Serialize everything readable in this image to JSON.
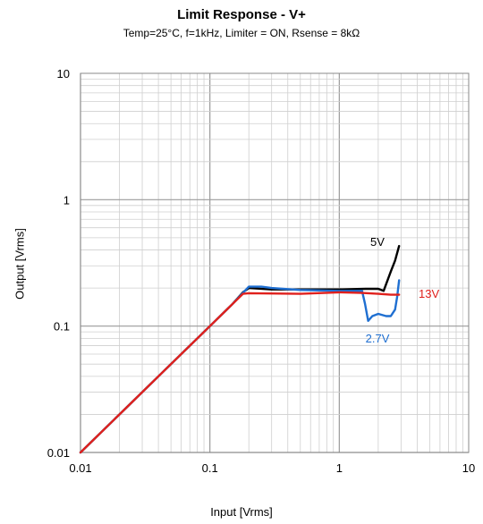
{
  "chart_data": {
    "type": "line",
    "title": "Limit Response - V+",
    "subtitle": "Temp=25°C, f=1kHz, Limiter = ON, Rsense = 8kΩ",
    "xlabel": "Input [Vrms]",
    "ylabel": "Output [Vrms]",
    "x_scale": "log",
    "y_scale": "log",
    "xlim": [
      0.01,
      10
    ],
    "ylim": [
      0.01,
      10
    ],
    "x_ticks": [
      "0.01",
      "0.1",
      "1",
      "10"
    ],
    "y_ticks": [
      "0.01",
      "0.1",
      "1",
      "10"
    ],
    "grid": true,
    "series": [
      {
        "name": "5V",
        "color": "#000000",
        "points": [
          [
            0.01,
            0.01
          ],
          [
            0.02,
            0.02
          ],
          [
            0.05,
            0.05
          ],
          [
            0.1,
            0.1
          ],
          [
            0.15,
            0.15
          ],
          [
            0.18,
            0.185
          ],
          [
            0.2,
            0.2
          ],
          [
            0.3,
            0.195
          ],
          [
            0.5,
            0.195
          ],
          [
            1,
            0.195
          ],
          [
            1.6,
            0.197
          ],
          [
            2.0,
            0.197
          ],
          [
            2.2,
            0.19
          ],
          [
            2.5,
            0.27
          ],
          [
            2.7,
            0.33
          ],
          [
            2.9,
            0.43
          ]
        ]
      },
      {
        "name": "2.7V",
        "color": "#1f6fd1",
        "points": [
          [
            0.01,
            0.01
          ],
          [
            0.02,
            0.02
          ],
          [
            0.05,
            0.05
          ],
          [
            0.1,
            0.1
          ],
          [
            0.15,
            0.15
          ],
          [
            0.2,
            0.205
          ],
          [
            0.25,
            0.205
          ],
          [
            0.3,
            0.2
          ],
          [
            0.5,
            0.193
          ],
          [
            1,
            0.19
          ],
          [
            1.5,
            0.19
          ],
          [
            1.58,
            0.15
          ],
          [
            1.67,
            0.11
          ],
          [
            1.8,
            0.12
          ],
          [
            2.0,
            0.125
          ],
          [
            2.3,
            0.12
          ],
          [
            2.5,
            0.12
          ],
          [
            2.7,
            0.135
          ],
          [
            2.8,
            0.17
          ],
          [
            2.9,
            0.23
          ]
        ]
      },
      {
        "name": "13V",
        "color": "#e0201c",
        "points": [
          [
            0.01,
            0.01
          ],
          [
            0.02,
            0.02
          ],
          [
            0.05,
            0.05
          ],
          [
            0.1,
            0.1
          ],
          [
            0.15,
            0.15
          ],
          [
            0.18,
            0.18
          ],
          [
            0.2,
            0.182
          ],
          [
            0.5,
            0.18
          ],
          [
            1,
            0.185
          ],
          [
            1.5,
            0.183
          ],
          [
            2,
            0.18
          ],
          [
            2.5,
            0.177
          ],
          [
            2.9,
            0.177
          ]
        ]
      }
    ]
  }
}
